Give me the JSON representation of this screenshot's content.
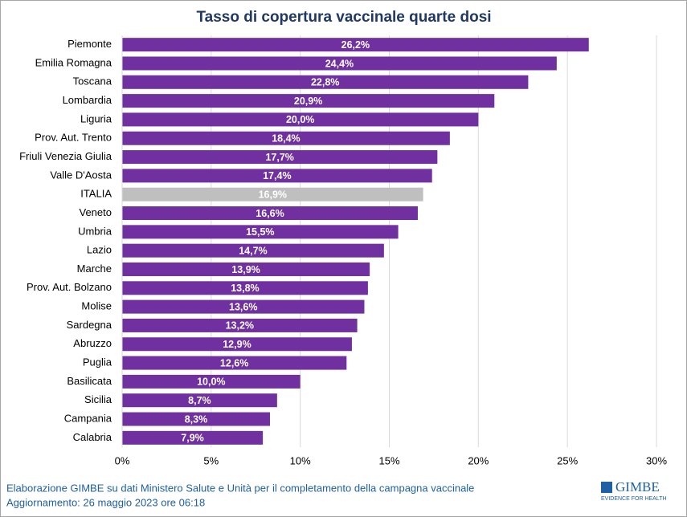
{
  "chart_data": {
    "type": "barh",
    "title": "Tasso di copertura vaccinale quarte dosi",
    "categories": [
      "Piemonte",
      "Emilia Romagna",
      "Toscana",
      "Lombardia",
      "Liguria",
      "Prov. Aut. Trento",
      "Friuli Venezia Giulia",
      "Valle D'Aosta",
      "ITALIA",
      "Veneto",
      "Umbria",
      "Lazio",
      "Marche",
      "Prov. Aut. Bolzano",
      "Molise",
      "Sardegna",
      "Abruzzo",
      "Puglia",
      "Basilicata",
      "Sicilia",
      "Campania",
      "Calabria"
    ],
    "values": [
      26.2,
      24.4,
      22.8,
      20.9,
      20.0,
      18.4,
      17.7,
      17.4,
      16.9,
      16.6,
      15.5,
      14.7,
      13.9,
      13.8,
      13.6,
      13.2,
      12.9,
      12.6,
      10.0,
      8.7,
      8.3,
      7.9
    ],
    "value_labels": [
      "26,2%",
      "24,4%",
      "22,8%",
      "20,9%",
      "20,0%",
      "18,4%",
      "17,7%",
      "17,4%",
      "16,9%",
      "16,6%",
      "15,5%",
      "14,7%",
      "13,9%",
      "13,8%",
      "13,6%",
      "13,2%",
      "12,9%",
      "12,6%",
      "10,0%",
      "8,7%",
      "8,3%",
      "7,9%"
    ],
    "colors": [
      "#7030a0",
      "#7030a0",
      "#7030a0",
      "#7030a0",
      "#7030a0",
      "#7030a0",
      "#7030a0",
      "#7030a0",
      "#bfbfbf",
      "#7030a0",
      "#7030a0",
      "#7030a0",
      "#7030a0",
      "#7030a0",
      "#7030a0",
      "#7030a0",
      "#7030a0",
      "#7030a0",
      "#7030a0",
      "#7030a0",
      "#7030a0",
      "#7030a0"
    ],
    "xlim": [
      0,
      30
    ],
    "xticks": [
      {
        "value": 0,
        "label": "0%"
      },
      {
        "value": 5,
        "label": "5%"
      },
      {
        "value": 10,
        "label": "10%"
      },
      {
        "value": 15,
        "label": "15%"
      },
      {
        "value": 20,
        "label": "20%"
      },
      {
        "value": 25,
        "label": "25%"
      },
      {
        "value": 30,
        "label": "30%"
      }
    ],
    "grid": true
  },
  "footer": {
    "source": "Elaborazione GIMBE su dati Ministero Salute e Unità per il completamento della campagna vaccinale",
    "updated": "Aggiornamento: 26 maggio 2023 ore 06:18",
    "logo": "GIMBE",
    "logo_tagline": "EVIDENCE FOR HEALTH"
  }
}
